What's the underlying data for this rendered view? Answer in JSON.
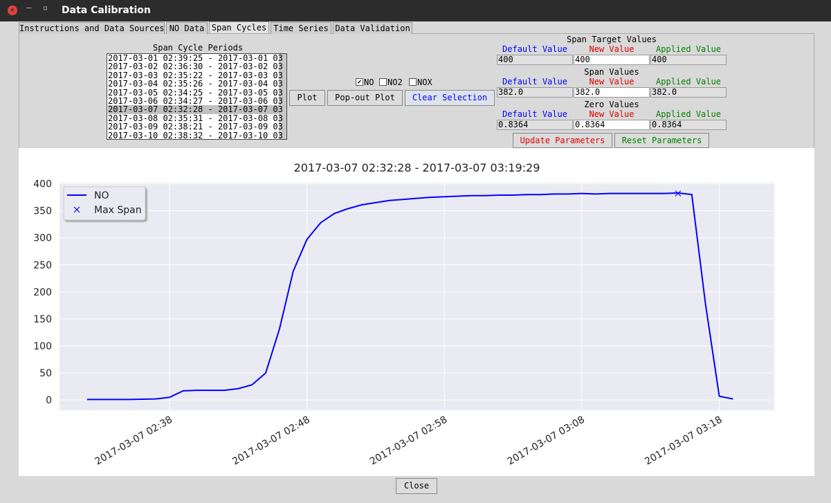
{
  "window": {
    "title": "Data Calibration"
  },
  "tabs": {
    "items": [
      "Instructions and Data Sources",
      "NO Data",
      "Span Cycles",
      "Time Series",
      "Data Validation"
    ],
    "active": 2
  },
  "span_cycles": {
    "label": "Span Cycle Periods",
    "selected": 6,
    "items": [
      "2017-03-01 02:39:25 - 2017-03-01 03",
      "2017-03-02 02:36:30 - 2017-03-02 03",
      "2017-03-03 02:35:22 - 2017-03-03 03",
      "2017-03-04 02:35:26 - 2017-03-04 03",
      "2017-03-05 02:34:25 - 2017-03-05 03",
      "2017-03-06 02:34:27 - 2017-03-06 03",
      "2017-03-07 02:32:28 - 2017-03-07 03",
      "2017-03-08 02:35:31 - 2017-03-08 03",
      "2017-03-09 02:38:21 - 2017-03-09 03",
      "2017-03-10 02:38:32 - 2017-03-10 03"
    ]
  },
  "checkboxes": [
    {
      "label": "NO",
      "checked": true
    },
    {
      "label": "NO2",
      "checked": false
    },
    {
      "label": "NOX",
      "checked": false
    }
  ],
  "buttons": [
    "Plot",
    "Pop-out Plot",
    "Clear Selection"
  ],
  "parameters": {
    "headers": [
      "Default Value",
      "New Value",
      "Applied Value"
    ],
    "groups": [
      {
        "title": "Span Target Values",
        "values": [
          "400",
          "400",
          "400"
        ]
      },
      {
        "title": "Span Values",
        "values": [
          "382.0",
          "382.0",
          "382.0"
        ]
      },
      {
        "title": "Zero Values",
        "values": [
          "0.8364",
          "0.8364",
          "0.8364"
        ]
      }
    ]
  },
  "parameter_buttons": [
    "Update Parameters",
    "Reset Parameters"
  ],
  "close_button": "Close",
  "chart_data": {
    "type": "line",
    "title": "2017-03-07 02:32:28 - 2017-03-07 03:19:29",
    "x": [
      "2017-03-07 02:32",
      "2017-03-07 02:33",
      "2017-03-07 02:34",
      "2017-03-07 02:35",
      "2017-03-07 02:36",
      "2017-03-07 02:37",
      "2017-03-07 02:38",
      "2017-03-07 02:39",
      "2017-03-07 02:40",
      "2017-03-07 02:41",
      "2017-03-07 02:42",
      "2017-03-07 02:43",
      "2017-03-07 02:44",
      "2017-03-07 02:45",
      "2017-03-07 02:46",
      "2017-03-07 02:47",
      "2017-03-07 02:48",
      "2017-03-07 02:49",
      "2017-03-07 02:50",
      "2017-03-07 02:51",
      "2017-03-07 02:52",
      "2017-03-07 02:53",
      "2017-03-07 02:54",
      "2017-03-07 02:55",
      "2017-03-07 02:56",
      "2017-03-07 02:57",
      "2017-03-07 02:58",
      "2017-03-07 02:59",
      "2017-03-07 03:00",
      "2017-03-07 03:01",
      "2017-03-07 03:02",
      "2017-03-07 03:03",
      "2017-03-07 03:04",
      "2017-03-07 03:05",
      "2017-03-07 03:06",
      "2017-03-07 03:07",
      "2017-03-07 03:08",
      "2017-03-07 03:09",
      "2017-03-07 03:10",
      "2017-03-07 03:11",
      "2017-03-07 03:12",
      "2017-03-07 03:13",
      "2017-03-07 03:14",
      "2017-03-07 03:15",
      "2017-03-07 03:16",
      "2017-03-07 03:17",
      "2017-03-07 03:18",
      "2017-03-07 03:19"
    ],
    "series": [
      {
        "name": "NO",
        "color": "#0000ff",
        "values": [
          1,
          1,
          1,
          1,
          1.5,
          2,
          5,
          17,
          18,
          18,
          18,
          21,
          28,
          50,
          131,
          238,
          297,
          328,
          345,
          354,
          361,
          365,
          369,
          371,
          373,
          375,
          376,
          377,
          378,
          378,
          379,
          379,
          380,
          380,
          381,
          381,
          382,
          381,
          382,
          382,
          382,
          382,
          382,
          383,
          380,
          177,
          7,
          2
        ]
      },
      {
        "name": "Max Span",
        "color": "#0000ff",
        "marker": "x",
        "x": [
          "2017-03-07 03:15"
        ],
        "values": [
          382
        ]
      }
    ],
    "xlim": [
      "2017-03-07 02:30",
      "2017-03-07 03:22"
    ],
    "xticks": [
      "2017-03-07 02:38",
      "2017-03-07 02:48",
      "2017-03-07 02:58",
      "2017-03-07 03:08",
      "2017-03-07 03:18"
    ],
    "ylim": [
      -19,
      402
    ],
    "yticks": [
      0,
      50,
      100,
      150,
      200,
      250,
      300,
      350,
      400
    ],
    "grid": true,
    "legend": "upper left"
  }
}
